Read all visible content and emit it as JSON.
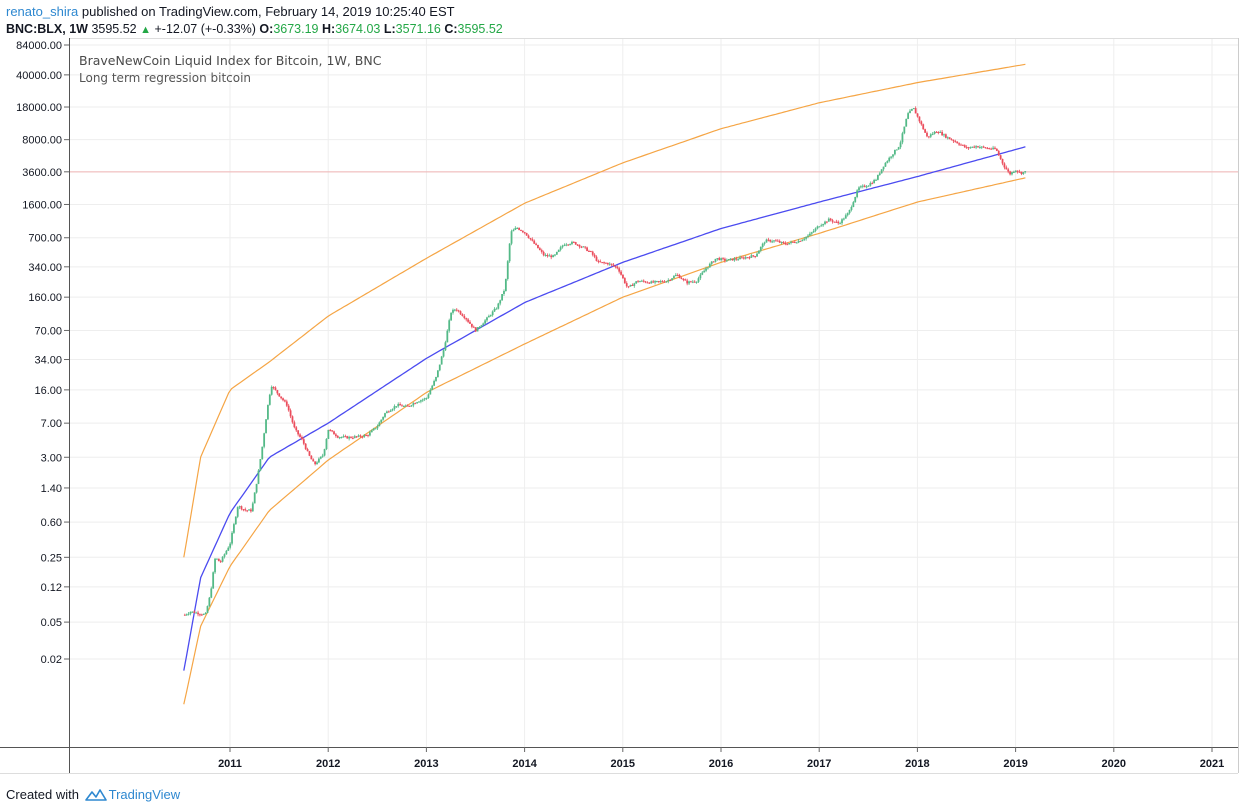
{
  "header": {
    "author": "renato_shira",
    "published_text": "published on TradingView.com, February 14, 2019 10:25:40 EST",
    "symbol": "BNC:BLX, 1W",
    "last_price": "3595.52",
    "change": "+-12.07 (+-0.33%)",
    "open_label": "O:",
    "open_value": "3673.19",
    "high_label": "H:",
    "high_value": "3674.03",
    "low_label": "L:",
    "low_value": "3571.16",
    "close_label": "C:",
    "close_value": "3595.52"
  },
  "footer": {
    "created_with": "Created with",
    "brand": "TradingView"
  },
  "colors": {
    "up": "#53b987",
    "down": "#eb4d5c",
    "regression_mid": "#4b4bf0",
    "regression_band": "#f5a545",
    "price_line": "#f0b4b4",
    "grid": "#eeeeee",
    "axis": "#666666"
  },
  "chart_data": {
    "type": "candlestick",
    "title": "BraveNewCoin Liquid Index for Bitcoin, 1W, BNC",
    "subtitle": "Long term regression bitcoin",
    "y_scale": "log",
    "y_ticks": [
      "84000.00",
      "40000.00",
      "18000.00",
      "8000.00",
      "3600.00",
      "1600.00",
      "700.00",
      "340.00",
      "160.00",
      "70.00",
      "34.00",
      "16.00",
      "7.00",
      "3.00",
      "1.40",
      "0.60",
      "0.25",
      "0.12",
      "0.05",
      "0.02"
    ],
    "x_ticks": [
      "2011",
      "2012",
      "2013",
      "2014",
      "2015",
      "2016",
      "2017",
      "2018",
      "2019",
      "2020",
      "2021"
    ],
    "x_range": [
      2010.5,
      2021.05
    ],
    "last_price_line": 3595.52,
    "price_path": [
      [
        2010.54,
        0.06
      ],
      [
        2010.6,
        0.065
      ],
      [
        2010.75,
        0.06
      ],
      [
        2010.8,
        0.1
      ],
      [
        2010.85,
        0.25
      ],
      [
        2010.9,
        0.22
      ],
      [
        2011.0,
        0.35
      ],
      [
        2011.08,
        0.9
      ],
      [
        2011.16,
        0.8
      ],
      [
        2011.22,
        0.8
      ],
      [
        2011.28,
        1.8
      ],
      [
        2011.33,
        4.0
      ],
      [
        2011.38,
        10.0
      ],
      [
        2011.42,
        18.0
      ],
      [
        2011.5,
        14.0
      ],
      [
        2011.58,
        11.0
      ],
      [
        2011.66,
        6.0
      ],
      [
        2011.74,
        4.5
      ],
      [
        2011.8,
        3.2
      ],
      [
        2011.86,
        2.5
      ],
      [
        2011.95,
        3.2
      ],
      [
        2012.0,
        6.0
      ],
      [
        2012.1,
        5.0
      ],
      [
        2012.2,
        4.9
      ],
      [
        2012.3,
        5.0
      ],
      [
        2012.4,
        5.2
      ],
      [
        2012.5,
        6.5
      ],
      [
        2012.58,
        9.0
      ],
      [
        2012.7,
        11.0
      ],
      [
        2012.8,
        10.5
      ],
      [
        2012.9,
        12.0
      ],
      [
        2013.0,
        13.0
      ],
      [
        2013.1,
        22.0
      ],
      [
        2013.18,
        45.0
      ],
      [
        2013.25,
        110.0
      ],
      [
        2013.3,
        120.0
      ],
      [
        2013.4,
        95.0
      ],
      [
        2013.5,
        70.0
      ],
      [
        2013.6,
        90.0
      ],
      [
        2013.72,
        125.0
      ],
      [
        2013.8,
        200.0
      ],
      [
        2013.86,
        800.0
      ],
      [
        2013.92,
        900.0
      ],
      [
        2014.0,
        800.0
      ],
      [
        2014.1,
        600.0
      ],
      [
        2014.2,
        450.0
      ],
      [
        2014.3,
        440.0
      ],
      [
        2014.4,
        600.0
      ],
      [
        2014.5,
        620.0
      ],
      [
        2014.6,
        550.0
      ],
      [
        2014.68,
        480.0
      ],
      [
        2014.75,
        380.0
      ],
      [
        2014.85,
        370.0
      ],
      [
        2014.95,
        330.0
      ],
      [
        2015.05,
        200.0
      ],
      [
        2015.15,
        240.0
      ],
      [
        2015.3,
        230.0
      ],
      [
        2015.45,
        240.0
      ],
      [
        2015.55,
        280.0
      ],
      [
        2015.65,
        230.0
      ],
      [
        2015.75,
        240.0
      ],
      [
        2015.85,
        330.0
      ],
      [
        2015.95,
        420.0
      ],
      [
        2016.05,
        400.0
      ],
      [
        2016.2,
        420.0
      ],
      [
        2016.35,
        450.0
      ],
      [
        2016.45,
        650.0
      ],
      [
        2016.55,
        650.0
      ],
      [
        2016.65,
        600.0
      ],
      [
        2016.8,
        650.0
      ],
      [
        2016.9,
        750.0
      ],
      [
        2017.0,
        950.0
      ],
      [
        2017.1,
        1100.0
      ],
      [
        2017.2,
        1000.0
      ],
      [
        2017.3,
        1300.0
      ],
      [
        2017.4,
        2400.0
      ],
      [
        2017.5,
        2600.0
      ],
      [
        2017.58,
        3000.0
      ],
      [
        2017.66,
        4300.0
      ],
      [
        2017.74,
        5500.0
      ],
      [
        2017.82,
        7000.0
      ],
      [
        2017.9,
        15000.0
      ],
      [
        2017.96,
        17500.0
      ],
      [
        2018.05,
        11000.0
      ],
      [
        2018.1,
        8500.0
      ],
      [
        2018.2,
        10000.0
      ],
      [
        2018.3,
        8500.0
      ],
      [
        2018.4,
        7500.0
      ],
      [
        2018.5,
        6500.0
      ],
      [
        2018.6,
        6800.0
      ],
      [
        2018.7,
        6500.0
      ],
      [
        2018.8,
        6300.0
      ],
      [
        2018.88,
        4200.0
      ],
      [
        2018.94,
        3400.0
      ],
      [
        2019.0,
        3800.0
      ],
      [
        2019.05,
        3500.0
      ],
      [
        2019.1,
        3596.0
      ]
    ],
    "regression_mid": [
      [
        2010.53,
        0.015
      ],
      [
        2010.7,
        0.15
      ],
      [
        2011.0,
        0.75
      ],
      [
        2011.4,
        3.0
      ],
      [
        2012.0,
        7.0
      ],
      [
        2013.0,
        35.0
      ],
      [
        2014.0,
        140.0
      ],
      [
        2015.0,
        380.0
      ],
      [
        2016.0,
        880.0
      ],
      [
        2017.0,
        1700.0
      ],
      [
        2018.0,
        3200.0
      ],
      [
        2019.1,
        6700.0
      ]
    ],
    "regression_upper": [
      [
        2010.53,
        0.25
      ],
      [
        2010.7,
        3.0
      ],
      [
        2011.0,
        16.0
      ],
      [
        2011.4,
        32.0
      ],
      [
        2012.0,
        100.0
      ],
      [
        2013.0,
        420.0
      ],
      [
        2014.0,
        1650.0
      ],
      [
        2015.0,
        4500.0
      ],
      [
        2016.0,
        10500.0
      ],
      [
        2017.0,
        20000.0
      ],
      [
        2018.0,
        33000.0
      ],
      [
        2019.1,
        52000.0
      ]
    ],
    "regression_lower": [
      [
        2010.53,
        0.0065
      ],
      [
        2010.7,
        0.045
      ],
      [
        2011.0,
        0.2
      ],
      [
        2011.4,
        0.8
      ],
      [
        2012.0,
        2.8
      ],
      [
        2013.0,
        15.0
      ],
      [
        2014.0,
        50.0
      ],
      [
        2015.0,
        160.0
      ],
      [
        2016.0,
        380.0
      ],
      [
        2017.0,
        780.0
      ],
      [
        2018.0,
        1700.0
      ],
      [
        2019.1,
        3100.0
      ]
    ]
  }
}
